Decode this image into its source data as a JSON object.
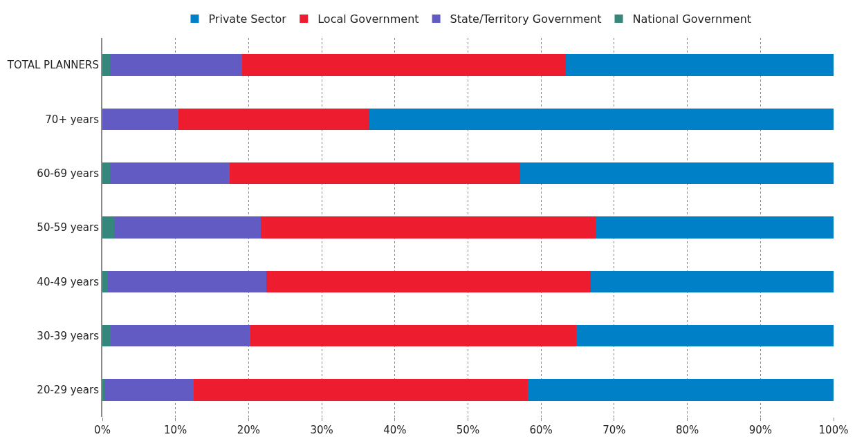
{
  "chart_data": {
    "type": "bar",
    "orientation": "horizontal",
    "stacked": true,
    "categories": [
      "TOTAL PLANNERS",
      "70+ years",
      "60-69 years",
      "50-59 years",
      "40-49 years",
      "30-39 years",
      "20-29 years"
    ],
    "series": [
      {
        "name": "National Government",
        "color": "#34877a",
        "values": [
          1.0,
          0,
          1.0,
          1.6,
          0.8,
          1.1,
          0.3
        ]
      },
      {
        "name": "State/Territory Government",
        "color": "#625bc4",
        "values": [
          18.1,
          10.4,
          16.4,
          20.1,
          21.6,
          19.1,
          12.2
        ]
      },
      {
        "name": "Local Government",
        "color": "#ed1c2e",
        "values": [
          44.3,
          26.1,
          39.7,
          45.8,
          44.4,
          44.6,
          45.7
        ]
      },
      {
        "name": "Private Sector",
        "color": "#0080c6",
        "values": [
          36.6,
          63.5,
          42.9,
          32.5,
          33.2,
          35.2,
          41.8
        ]
      }
    ],
    "xlim": [
      0,
      100
    ],
    "xticks": [
      {
        "value": 0,
        "label": "0%"
      },
      {
        "value": 10,
        "label": "10%"
      },
      {
        "value": 20,
        "label": "20%"
      },
      {
        "value": 30,
        "label": "30%"
      },
      {
        "value": 40,
        "label": "40%"
      },
      {
        "value": 50,
        "label": "50%"
      },
      {
        "value": 60,
        "label": "60%"
      },
      {
        "value": 70,
        "label": "70%"
      },
      {
        "value": 80,
        "label": "80%"
      },
      {
        "value": 90,
        "label": "90%"
      },
      {
        "value": 100,
        "label": "100%"
      }
    ],
    "grid": "x",
    "legend": "top"
  }
}
